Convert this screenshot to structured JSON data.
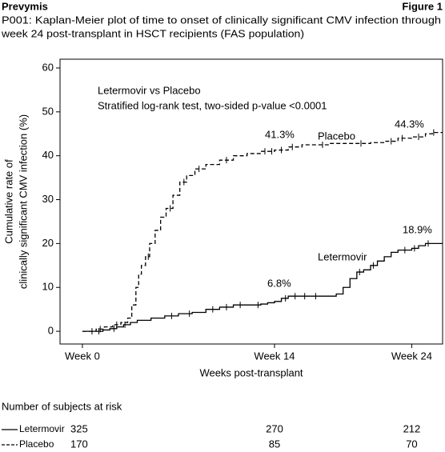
{
  "header": {
    "left": "Prevymis",
    "right": "Figure 1"
  },
  "chart_data": {
    "type": "step",
    "title": [
      "P001:  Kaplan-Meier plot of time to onset of clinically significant CMV infection through",
      "week 24 post-transplant in HSCT recipients (FAS population)"
    ],
    "xlabel": "Weeks post-transplant",
    "ylabel": [
      "Cumulative rate of",
      "clinically significant CMV infection (%)"
    ],
    "xlim": [
      -1.63,
      26.25
    ],
    "ylim": [
      -2.9,
      62
    ],
    "xticks": [
      {
        "value": 0,
        "label": "Week 0"
      },
      {
        "value": 14,
        "label": "Week 14"
      },
      {
        "value": 24,
        "label": "Week 24"
      }
    ],
    "yticks": [
      0,
      10,
      20,
      30,
      40,
      50,
      60
    ],
    "series": [
      {
        "name": "Letermovir",
        "color": "#000000",
        "line_style": "solid",
        "x": [
          0,
          1.5,
          2,
          2.5,
          3,
          3.5,
          4,
          5,
          6,
          7,
          8,
          9,
          10,
          11,
          12,
          13,
          13.5,
          14,
          14.5,
          15,
          18,
          18.5,
          19,
          19.5,
          20,
          20.5,
          21,
          21.5,
          22,
          22.5,
          23,
          24,
          24.5,
          25,
          25.5
        ],
        "values": [
          0,
          0.3,
          0.6,
          1,
          1.5,
          2,
          2.5,
          3,
          3.5,
          4,
          4.3,
          5,
          5.5,
          6,
          6,
          6.2,
          6.5,
          6.8,
          7.5,
          8,
          8,
          8.5,
          10,
          12,
          13.5,
          14,
          15,
          16,
          17,
          18,
          18.5,
          18.9,
          19.5,
          20,
          20
        ],
        "censored_x": [
          0.7,
          1.2,
          2.3,
          3.1,
          6.5,
          7.8,
          9.5,
          10.5,
          11.5,
          12.8,
          14.8,
          15.5,
          16.2,
          17,
          20.2,
          21.2,
          23.5,
          24.2,
          25.2
        ]
      },
      {
        "name": "Placebo",
        "color": "#000000",
        "line_style": "dashed",
        "x": [
          0,
          1,
          1.6,
          2.2,
          2.8,
          3.3,
          3.6,
          3.9,
          4.1,
          4.3,
          4.6,
          4.9,
          5.3,
          5.7,
          6.1,
          6.6,
          7.1,
          7.6,
          8.2,
          9,
          10,
          11,
          12,
          13,
          14,
          15,
          16,
          18,
          20,
          21,
          22,
          23,
          24,
          25,
          25.5
        ],
        "values": [
          0,
          0.5,
          1,
          1.5,
          2,
          3,
          6,
          10,
          13,
          15,
          17,
          20,
          23,
          26,
          28,
          31,
          34,
          35.5,
          37,
          38,
          39,
          40,
          40.5,
          41,
          41.3,
          42,
          42.5,
          42.8,
          42.8,
          43,
          43.3,
          44,
          44.3,
          45,
          45.3
        ],
        "censored_x": [
          1.3,
          2.5,
          4.8,
          6.4,
          7.4,
          8.5,
          10.5,
          13.3,
          13.8,
          14.5,
          15.3,
          17.5,
          20.3,
          22.5,
          23.3,
          24.5,
          25.6
        ]
      }
    ],
    "annotations": [
      "Letermovir vs Placebo",
      "Stratified log-rank test, two-sided p-value <0.0001",
      "41.3%",
      "Placebo",
      "44.3%",
      "6.8%",
      "Letermovir",
      "18.9%"
    ]
  },
  "risk_table": {
    "title": "Number of subjects at risk",
    "rows": [
      [
        "Letermovir",
        "325",
        "270",
        "212"
      ],
      [
        "Placebo",
        "170",
        "85",
        "70"
      ]
    ]
  }
}
